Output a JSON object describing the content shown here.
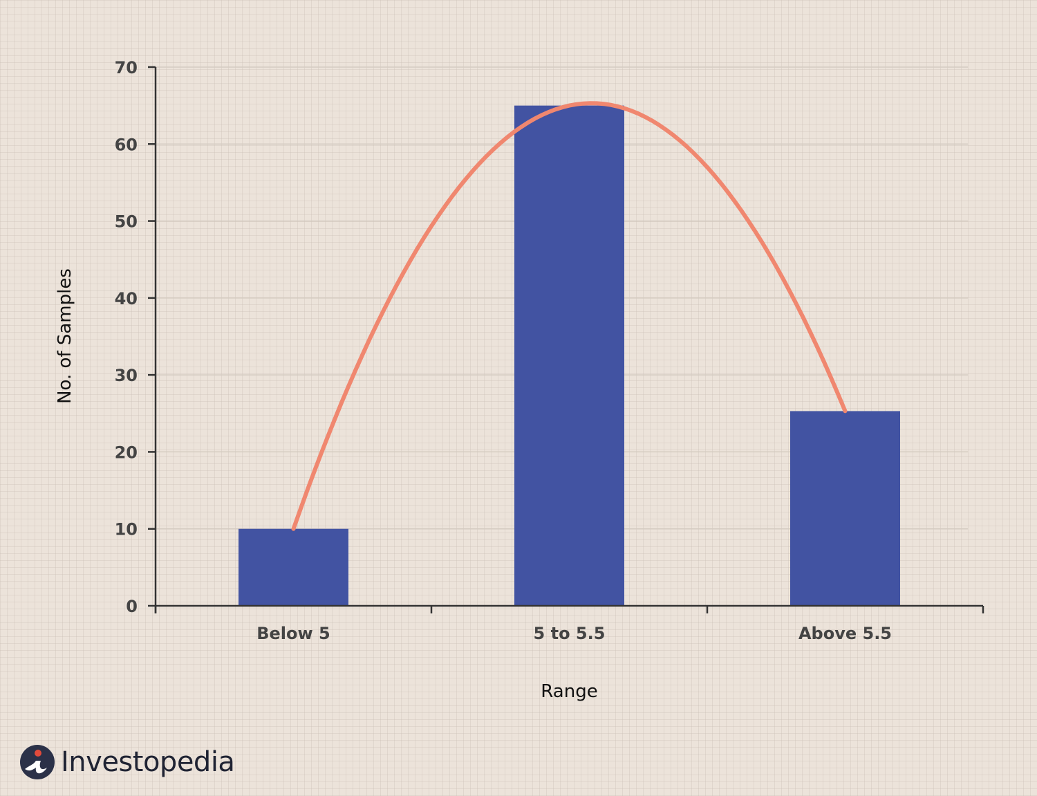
{
  "chart_data": {
    "type": "bar",
    "categories": [
      "Below 5",
      "5 to 5.5",
      "Above 5.5"
    ],
    "values": [
      10,
      65,
      25.3
    ],
    "xlabel": "Range",
    "ylabel": "No. of Samples",
    "ylim": [
      0,
      70
    ],
    "yticks": [
      0,
      10,
      20,
      30,
      40,
      50,
      60,
      70
    ],
    "grid": true,
    "curve": {
      "type": "line",
      "description_free": true
    },
    "colors": {
      "bar": "#4253a2",
      "curve": "#f0876f",
      "axis": "#333333",
      "grid": "#d4cbc1"
    }
  },
  "logo": {
    "text": "Investopedia",
    "icon": "investopedia-logo-icon"
  }
}
